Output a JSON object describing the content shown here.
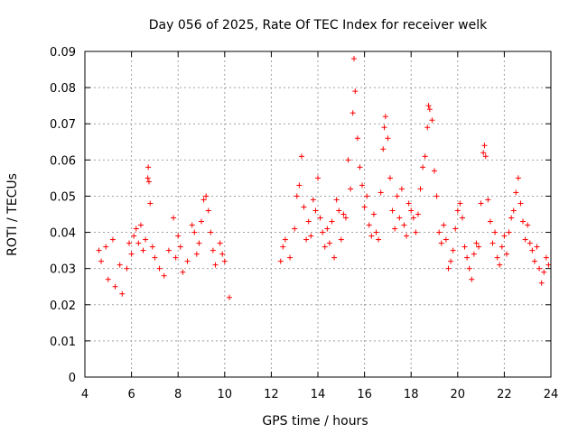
{
  "chart_data": {
    "type": "scatter",
    "title": "Day 056 of 2025, Rate Of TEC Index for receiver welk",
    "xlabel": "GPS time / hours",
    "ylabel": "ROTI / TECUs",
    "xlim": [
      4,
      24
    ],
    "ylim": [
      0,
      0.09
    ],
    "x_ticks": [
      "4",
      "6",
      "8",
      "10",
      "12",
      "14",
      "16",
      "18",
      "20",
      "22",
      "24"
    ],
    "y_ticks": [
      "0",
      "0.01",
      "0.02",
      "0.03",
      "0.04",
      "0.05",
      "0.06",
      "0.07",
      "0.08",
      "0.09"
    ],
    "x_tick_values": [
      4,
      6,
      8,
      10,
      12,
      14,
      16,
      18,
      20,
      22,
      24
    ],
    "y_tick_values": [
      0,
      0.01,
      0.02,
      0.03,
      0.04,
      0.05,
      0.06,
      0.07,
      0.08,
      0.09
    ],
    "grid": true,
    "marker": "plus",
    "color": "#ff0000",
    "series": [
      {
        "points": [
          [
            4.6,
            0.035
          ],
          [
            4.7,
            0.032
          ],
          [
            4.9,
            0.036
          ],
          [
            5.0,
            0.027
          ],
          [
            5.2,
            0.038
          ],
          [
            5.3,
            0.025
          ],
          [
            5.5,
            0.031
          ],
          [
            5.6,
            0.023
          ],
          [
            5.8,
            0.03
          ],
          [
            5.9,
            0.037
          ],
          [
            6.0,
            0.034
          ],
          [
            6.1,
            0.039
          ],
          [
            6.2,
            0.041
          ],
          [
            6.3,
            0.037
          ],
          [
            6.4,
            0.042
          ],
          [
            6.5,
            0.035
          ],
          [
            6.6,
            0.038
          ],
          [
            6.7,
            0.055
          ],
          [
            6.72,
            0.058
          ],
          [
            6.75,
            0.054
          ],
          [
            6.8,
            0.048
          ],
          [
            6.9,
            0.036
          ],
          [
            7.0,
            0.033
          ],
          [
            7.2,
            0.03
          ],
          [
            7.4,
            0.028
          ],
          [
            7.6,
            0.035
          ],
          [
            7.8,
            0.044
          ],
          [
            7.9,
            0.033
          ],
          [
            8.0,
            0.039
          ],
          [
            8.1,
            0.036
          ],
          [
            8.2,
            0.029
          ],
          [
            8.4,
            0.032
          ],
          [
            8.6,
            0.042
          ],
          [
            8.7,
            0.04
          ],
          [
            8.8,
            0.034
          ],
          [
            8.9,
            0.037
          ],
          [
            9.0,
            0.043
          ],
          [
            9.1,
            0.049
          ],
          [
            9.2,
            0.05
          ],
          [
            9.3,
            0.046
          ],
          [
            9.4,
            0.04
          ],
          [
            9.5,
            0.035
          ],
          [
            9.6,
            0.031
          ],
          [
            9.8,
            0.037
          ],
          [
            9.9,
            0.034
          ],
          [
            10.0,
            0.032
          ],
          [
            10.2,
            0.022
          ],
          [
            12.4,
            0.032
          ],
          [
            12.5,
            0.036
          ],
          [
            12.6,
            0.038
          ],
          [
            12.8,
            0.033
          ],
          [
            13.0,
            0.041
          ],
          [
            13.1,
            0.05
          ],
          [
            13.2,
            0.053
          ],
          [
            13.3,
            0.061
          ],
          [
            13.4,
            0.047
          ],
          [
            13.5,
            0.038
          ],
          [
            13.6,
            0.043
          ],
          [
            13.7,
            0.039
          ],
          [
            13.8,
            0.049
          ],
          [
            13.9,
            0.046
          ],
          [
            14.0,
            0.055
          ],
          [
            14.1,
            0.044
          ],
          [
            14.2,
            0.04
          ],
          [
            14.3,
            0.036
          ],
          [
            14.4,
            0.041
          ],
          [
            14.5,
            0.037
          ],
          [
            14.6,
            0.043
          ],
          [
            14.7,
            0.033
          ],
          [
            14.8,
            0.049
          ],
          [
            14.9,
            0.046
          ],
          [
            15.0,
            0.038
          ],
          [
            15.1,
            0.045
          ],
          [
            15.2,
            0.044
          ],
          [
            15.3,
            0.06
          ],
          [
            15.4,
            0.052
          ],
          [
            15.5,
            0.073
          ],
          [
            15.55,
            0.088
          ],
          [
            15.6,
            0.079
          ],
          [
            15.7,
            0.066
          ],
          [
            15.8,
            0.058
          ],
          [
            15.9,
            0.053
          ],
          [
            16.0,
            0.047
          ],
          [
            16.1,
            0.05
          ],
          [
            16.2,
            0.042
          ],
          [
            16.3,
            0.039
          ],
          [
            16.4,
            0.045
          ],
          [
            16.5,
            0.04
          ],
          [
            16.6,
            0.038
          ],
          [
            16.7,
            0.051
          ],
          [
            16.8,
            0.063
          ],
          [
            16.85,
            0.069
          ],
          [
            16.9,
            0.072
          ],
          [
            17.0,
            0.066
          ],
          [
            17.1,
            0.055
          ],
          [
            17.2,
            0.046
          ],
          [
            17.3,
            0.041
          ],
          [
            17.4,
            0.05
          ],
          [
            17.5,
            0.044
          ],
          [
            17.6,
            0.052
          ],
          [
            17.7,
            0.042
          ],
          [
            17.8,
            0.039
          ],
          [
            17.9,
            0.048
          ],
          [
            18.0,
            0.046
          ],
          [
            18.1,
            0.044
          ],
          [
            18.2,
            0.04
          ],
          [
            18.3,
            0.045
          ],
          [
            18.4,
            0.052
          ],
          [
            18.5,
            0.058
          ],
          [
            18.6,
            0.061
          ],
          [
            18.7,
            0.069
          ],
          [
            18.75,
            0.075
          ],
          [
            18.8,
            0.074
          ],
          [
            18.9,
            0.071
          ],
          [
            19.0,
            0.057
          ],
          [
            19.1,
            0.05
          ],
          [
            19.2,
            0.04
          ],
          [
            19.3,
            0.037
          ],
          [
            19.4,
            0.042
          ],
          [
            19.5,
            0.038
          ],
          [
            19.6,
            0.03
          ],
          [
            19.7,
            0.032
          ],
          [
            19.8,
            0.035
          ],
          [
            19.9,
            0.041
          ],
          [
            20.0,
            0.046
          ],
          [
            20.1,
            0.048
          ],
          [
            20.2,
            0.044
          ],
          [
            20.3,
            0.036
          ],
          [
            20.4,
            0.033
          ],
          [
            20.5,
            0.03
          ],
          [
            20.6,
            0.027
          ],
          [
            20.7,
            0.034
          ],
          [
            20.8,
            0.037
          ],
          [
            20.9,
            0.036
          ],
          [
            21.0,
            0.048
          ],
          [
            21.1,
            0.062
          ],
          [
            21.15,
            0.064
          ],
          [
            21.2,
            0.061
          ],
          [
            21.3,
            0.049
          ],
          [
            21.4,
            0.043
          ],
          [
            21.5,
            0.037
          ],
          [
            21.6,
            0.04
          ],
          [
            21.7,
            0.033
          ],
          [
            21.8,
            0.031
          ],
          [
            21.9,
            0.036
          ],
          [
            22.0,
            0.039
          ],
          [
            22.1,
            0.034
          ],
          [
            22.2,
            0.04
          ],
          [
            22.3,
            0.044
          ],
          [
            22.4,
            0.046
          ],
          [
            22.5,
            0.051
          ],
          [
            22.6,
            0.055
          ],
          [
            22.7,
            0.048
          ],
          [
            22.8,
            0.043
          ],
          [
            22.9,
            0.038
          ],
          [
            23.0,
            0.042
          ],
          [
            23.1,
            0.037
          ],
          [
            23.2,
            0.035
          ],
          [
            23.3,
            0.032
          ],
          [
            23.4,
            0.036
          ],
          [
            23.5,
            0.03
          ],
          [
            23.6,
            0.026
          ],
          [
            23.7,
            0.029
          ],
          [
            23.8,
            0.033
          ],
          [
            23.9,
            0.031
          ]
        ]
      }
    ]
  }
}
